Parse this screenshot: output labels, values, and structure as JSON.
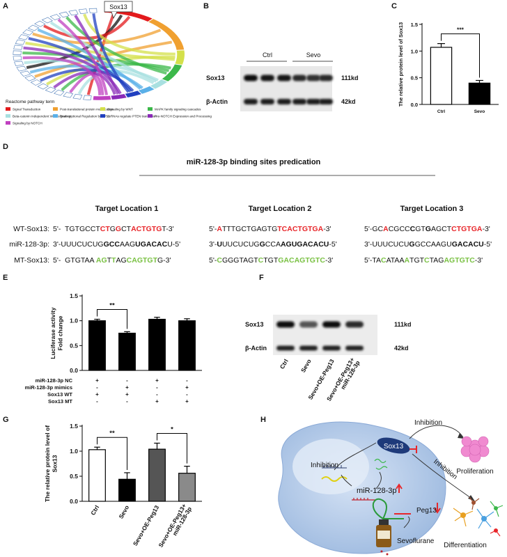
{
  "panels": {
    "labels": [
      "A",
      "B",
      "C",
      "D",
      "E",
      "F",
      "G",
      "H"
    ]
  },
  "chord": {
    "callout": "Sox13",
    "legend_title": "Reactome pathway term",
    "legend": [
      {
        "name": "Signal Transduction",
        "color": "#e31a1c"
      },
      {
        "name": "Post-translational protein modification",
        "color": "#f0a030"
      },
      {
        "name": "Signaling by WNT",
        "color": "#d4e04a"
      },
      {
        "name": "MAPK family signaling cascades",
        "color": "#3cb84a"
      },
      {
        "name": "Beta-catenin independent WNT signaling",
        "color": "#a8e0e0"
      },
      {
        "name": "Transcriptional Regulation by TP53",
        "color": "#5ab0e8"
      },
      {
        "name": "ceRNAs regulate PTEN translation",
        "color": "#2040c0"
      },
      {
        "name": "Pre-NOTCH Expression and Processing",
        "color": "#8a2ab8"
      },
      {
        "name": "Signaling by NOTCH",
        "color": "#c040c0"
      }
    ]
  },
  "blot_b": {
    "groups": [
      "Ctrl",
      "Sevo"
    ],
    "proteins": [
      {
        "name": "Sox13",
        "size": "111kd"
      },
      {
        "name": "β-Actin",
        "size": "42kd"
      }
    ]
  },
  "binding": {
    "title": "miR-128-3p binding sites predication",
    "row_labels": [
      "WT-Sox13:",
      "miR-128-3p:",
      "MT-Sox13:"
    ],
    "locations": [
      {
        "name": "Target Location 1",
        "rows": [
          [
            {
              "text": "5'-  TGTGCCT"
            },
            {
              "text": "CT",
              "color": "#e8262a",
              "bold": true
            },
            {
              "text": "G"
            },
            {
              "text": "G",
              "color": "#e8262a",
              "bold": true
            },
            {
              "text": "CT"
            },
            {
              "text": "ACTGTG",
              "color": "#e8262a",
              "bold": true
            },
            {
              "text": "T-3'"
            }
          ],
          [
            {
              "text": "3'-UUUCUCUG"
            },
            {
              "text": "GCC",
              "bold": true
            },
            {
              "text": "AAG"
            },
            {
              "text": "UGACAC",
              "bold": true
            },
            {
              "text": "U-5'"
            }
          ],
          [
            {
              "text": "5'-  GTGTAA "
            },
            {
              "text": "AG",
              "color": "#7ac143",
              "bold": true
            },
            {
              "text": "T"
            },
            {
              "text": "T",
              "color": "#7ac143",
              "bold": true
            },
            {
              "text": "AG"
            },
            {
              "text": "CAGTGT",
              "color": "#7ac143",
              "bold": true
            },
            {
              "text": "G-3'"
            }
          ]
        ]
      },
      {
        "name": "Target Location 2",
        "rows": [
          [
            {
              "text": "5'-"
            },
            {
              "text": "A",
              "color": "#e8262a",
              "bold": true
            },
            {
              "text": "TTTGCTGAGTG"
            },
            {
              "text": "TCACTGTGA",
              "color": "#e8262a",
              "bold": true
            },
            {
              "text": "-3'"
            }
          ],
          [
            {
              "text": "3'-"
            },
            {
              "text": "U",
              "bold": true
            },
            {
              "text": "UUCUCUG"
            },
            {
              "text": "G",
              "bold": true
            },
            {
              "text": "CCA"
            },
            {
              "text": "AGUGACACU",
              "bold": true
            },
            {
              "text": "-5'"
            }
          ],
          [
            {
              "text": "5'-"
            },
            {
              "text": "C",
              "color": "#7ac143",
              "bold": true
            },
            {
              "text": "GGGTAGT"
            },
            {
              "text": "C",
              "color": "#7ac143",
              "bold": true
            },
            {
              "text": "TGT"
            },
            {
              "text": "GACAGTGTC",
              "color": "#7ac143",
              "bold": true
            },
            {
              "text": "-3'"
            }
          ]
        ]
      },
      {
        "name": "Target Location 3",
        "rows": [
          [
            {
              "text": "5'-GC"
            },
            {
              "text": "A",
              "color": "#e8262a",
              "bold": true
            },
            {
              "text": "CGCC"
            },
            {
              "text": "C",
              "bold": true
            },
            {
              "text": "GT"
            },
            {
              "text": "G",
              "bold": true
            },
            {
              "text": "AGCT"
            },
            {
              "text": "CTGTGA",
              "color": "#e8262a",
              "bold": true
            },
            {
              "text": "-3'"
            }
          ],
          [
            {
              "text": "3'-UUUCUCU"
            },
            {
              "text": "G",
              "bold": true
            },
            {
              "text": "GCCAAGU"
            },
            {
              "text": "GACACU",
              "bold": true
            },
            {
              "text": "-5'"
            }
          ],
          [
            {
              "text": "5'-TA"
            },
            {
              "text": "C",
              "color": "#7ac143",
              "bold": true
            },
            {
              "text": "ATAA"
            },
            {
              "text": "A",
              "color": "#7ac143",
              "bold": true
            },
            {
              "text": "TGT"
            },
            {
              "text": "C",
              "color": "#7ac143",
              "bold": true
            },
            {
              "text": "TAG"
            },
            {
              "text": "AGTGTC",
              "color": "#7ac143",
              "bold": true
            },
            {
              "text": "-3'"
            }
          ]
        ]
      }
    ]
  },
  "blot_f": {
    "lanes": [
      "Ctrl",
      "Sevo",
      "Sevo+OE-Peg13",
      [
        "Sevo+OE-Peg13+",
        "miR-128-3p"
      ]
    ],
    "proteins": [
      {
        "name": "Sox13",
        "size": "111kd"
      },
      {
        "name": "β-Actin",
        "size": "42kd"
      }
    ]
  },
  "model": {
    "sox13": "Sox13",
    "proliferation": "Proliferation",
    "differentiation": "Differentiation",
    "mir": "miR-128-3p",
    "peg13": "Peg13",
    "drug": "Sevoflurane",
    "inhibitions": [
      "Inhibition",
      "Inhibition",
      "Inhibition"
    ]
  },
  "chart_data": [
    {
      "type": "bar",
      "y_label": "The relative protein level of Sox13",
      "categories": [
        "Ctrl",
        "Sevo"
      ],
      "values": [
        1.07,
        0.4
      ],
      "errors": [
        0.07,
        0.05
      ],
      "colors": [
        "#ffffff",
        "#000000"
      ],
      "annotations": [
        "***"
      ],
      "ylim": [
        0,
        1.5
      ],
      "yticks": [
        {
          "value": 0,
          "label": "0.0"
        },
        0.5,
        {
          "value": 1,
          "label": "1.0"
        },
        1.5
      ]
    },
    {
      "type": "bar",
      "y_label": [
        "Luciferase activity",
        "Fold change"
      ],
      "values": [
        1.0,
        0.75,
        1.03,
        1.0
      ],
      "errors": [
        0.03,
        0.03,
        0.04,
        0.04
      ],
      "colors": [
        "#000000",
        "#000000",
        "#000000",
        "#000000"
      ],
      "annotations": [
        "**"
      ],
      "ylim": [
        0,
        1.5
      ],
      "yticks": [
        {
          "value": 0,
          "label": "0.0"
        },
        0.5,
        {
          "value": 1,
          "label": "1.0"
        },
        1.5
      ],
      "conditions": [
        {
          "label": "miR-128-3p NC",
          "signs": [
            "+",
            "-",
            "+",
            "-"
          ]
        },
        {
          "label": "miR-128-3p mimics",
          "signs": [
            "-",
            "+",
            "-",
            "+"
          ]
        },
        {
          "label": "Sox13 WT",
          "signs": [
            "+",
            "+",
            "-",
            "-"
          ]
        },
        {
          "label": "Sox13 MT",
          "signs": [
            "-",
            "-",
            "+",
            "+"
          ]
        }
      ]
    },
    {
      "type": "bar",
      "y_label": [
        "The relative protein level of",
        "Sox13"
      ],
      "categories": [
        "Ctrl",
        "Sevo",
        "Sevo+OE-Peg13",
        [
          "Sevo+OE-Peg13+",
          "miR-128-3p"
        ]
      ],
      "values": [
        1.03,
        0.44,
        1.04,
        0.56
      ],
      "errors": [
        0.05,
        0.13,
        0.12,
        0.14
      ],
      "colors": [
        "#ffffff",
        "#000000",
        "#555555",
        "#8a8a8a"
      ],
      "annotations": [
        "**",
        "*"
      ],
      "ylim": [
        0,
        1.5
      ],
      "yticks": [
        {
          "value": 0,
          "label": "0.0"
        },
        0.5,
        {
          "value": 1,
          "label": "1.0"
        },
        1.5
      ]
    }
  ]
}
